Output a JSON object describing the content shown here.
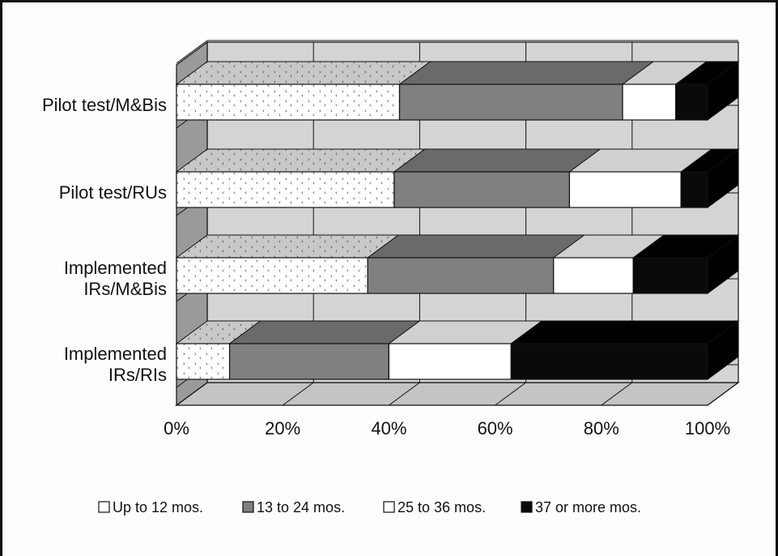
{
  "chart_data": {
    "type": "bar",
    "orientation": "horizontal",
    "stacked": true,
    "three_d": true,
    "categories": [
      "Pilot test/M&Bis",
      "Pilot test/RUs",
      "Implemented IRs/M&Bis",
      "Implemented IRs/RIs"
    ],
    "category_lines": [
      [
        "Pilot test/M&Bis"
      ],
      [
        "Pilot test/RUs"
      ],
      [
        "Implemented",
        "IRs/M&Bis"
      ],
      [
        "Implemented",
        "IRs/RIs"
      ]
    ],
    "series": [
      {
        "name": "Up to 12 mos.",
        "values": [
          42,
          41,
          36,
          10
        ],
        "pattern": "dots",
        "color": "#ffffff"
      },
      {
        "name": "13 to 24 mos.",
        "values": [
          42,
          33,
          35,
          30
        ],
        "pattern": "solid",
        "color": "#808080"
      },
      {
        "name": "25 to 36 mos.",
        "values": [
          10,
          21,
          15,
          23
        ],
        "pattern": "solid",
        "color": "#ffffff"
      },
      {
        "name": "37 or more mos.",
        "values": [
          6,
          5,
          14,
          37
        ],
        "pattern": "solid",
        "color": "#0a0a0a"
      }
    ],
    "xlim": [
      0,
      100
    ],
    "xticks": [
      "0%",
      "20%",
      "40%",
      "60%",
      "80%",
      "100%"
    ],
    "xtick_values": [
      0,
      20,
      40,
      60,
      80,
      100
    ],
    "grid": true,
    "legend_position": "bottom",
    "title": "",
    "xlabel": "",
    "ylabel": ""
  },
  "legend": {
    "items": [
      "Up to 12 mos.",
      "13 to 24 mos.",
      "25 to 36 mos.",
      "37 or more mos."
    ]
  }
}
